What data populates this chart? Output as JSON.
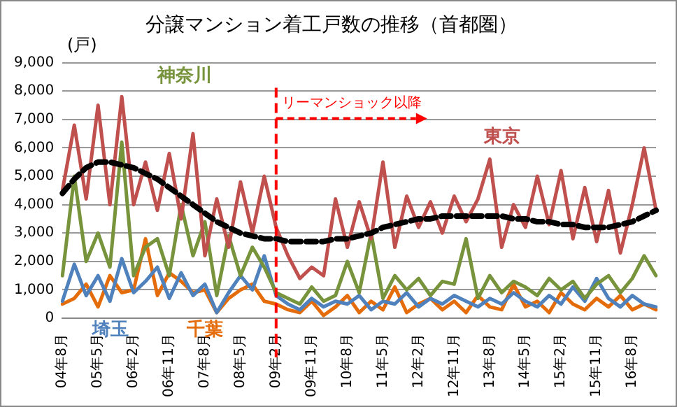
{
  "chart_data": {
    "type": "line",
    "title": "分譲マンション着工戸数の推移（首都圏）",
    "ylabel": "(戸)",
    "categories": [
      "04年8月",
      null,
      null,
      "05年5月",
      null,
      null,
      "06年2月",
      null,
      null,
      "06年11月",
      null,
      null,
      "07年8月",
      null,
      null,
      "08年5月",
      null,
      null,
      "09年2月",
      null,
      null,
      "09年11月",
      null,
      null,
      "10年8月",
      null,
      null,
      "11年5月",
      null,
      null,
      "12年2月",
      null,
      null,
      "12年11月",
      null,
      null,
      "13年8月",
      null,
      null,
      "14年5月",
      null,
      null,
      "15年2月",
      null,
      null,
      "15年11月",
      null,
      null,
      "16年8月",
      null,
      null
    ],
    "series": [
      {
        "name": "東京",
        "color": "#c0504d",
        "values": [
          4500,
          6800,
          4200,
          7500,
          4000,
          7800,
          4000,
          5500,
          3800,
          5800,
          3500,
          6500,
          2200,
          4200,
          2500,
          4800,
          3000,
          5000,
          3200,
          2200,
          1400,
          1800,
          1500,
          4200,
          2500,
          4100,
          2800,
          5500,
          2500,
          4300,
          3200,
          4100,
          3000,
          4300,
          3400,
          4200,
          5600,
          2500,
          4000,
          3200,
          5000,
          3300,
          5200,
          2800,
          4600,
          2700,
          4500,
          2300,
          4000,
          6000,
          3800
        ]
      },
      {
        "name": "神奈川",
        "color": "#77933c",
        "values": [
          1500,
          5000,
          2000,
          3000,
          1800,
          6200,
          1500,
          2500,
          2800,
          1500,
          4000,
          2200,
          3400,
          800,
          2900,
          1500,
          2500,
          1800,
          900,
          700,
          500,
          1100,
          600,
          800,
          2000,
          900,
          3000,
          700,
          1500,
          1000,
          1400,
          800,
          1300,
          1200,
          2800,
          700,
          1500,
          900,
          1300,
          1100,
          800,
          1400,
          1000,
          1300,
          700,
          1200,
          1500,
          900,
          1400,
          2200,
          1500
        ]
      },
      {
        "name": "埼玉",
        "color": "#4f81bd",
        "values": [
          600,
          1900,
          800,
          1500,
          600,
          2100,
          900,
          1300,
          1800,
          700,
          1600,
          800,
          1200,
          200,
          900,
          1500,
          1000,
          2200,
          800,
          500,
          300,
          700,
          400,
          600,
          500,
          800,
          300,
          600,
          500,
          900,
          400,
          700,
          500,
          800,
          600,
          400,
          700,
          500,
          900,
          600,
          400,
          800,
          500,
          1100,
          600,
          1400,
          700,
          400,
          800,
          500,
          400
        ]
      },
      {
        "name": "千葉",
        "color": "#e46c0a",
        "values": [
          500,
          700,
          1200,
          400,
          1500,
          900,
          1000,
          2800,
          800,
          1600,
          1300,
          900,
          1000,
          200,
          700,
          1000,
          1200,
          600,
          500,
          300,
          200,
          600,
          100,
          400,
          800,
          200,
          600,
          300,
          1100,
          200,
          500,
          700,
          300,
          600,
          200,
          800,
          400,
          300,
          1200,
          400,
          600,
          200,
          900,
          500,
          300,
          700,
          400,
          800,
          300,
          500,
          300
        ]
      },
      {
        "color": "#000000",
        "line_style": "dashed",
        "values": [
          4400,
          4900,
          5300,
          5500,
          5500,
          5400,
          5300,
          5100,
          4900,
          4600,
          4300,
          4000,
          3700,
          3400,
          3200,
          3000,
          2900,
          2800,
          2800,
          2700,
          2700,
          2700,
          2700,
          2800,
          2800,
          2900,
          3000,
          3200,
          3300,
          3400,
          3500,
          3500,
          3600,
          3600,
          3600,
          3600,
          3600,
          3600,
          3500,
          3500,
          3400,
          3400,
          3300,
          3300,
          3200,
          3200,
          3200,
          3300,
          3400,
          3600,
          3800
        ]
      }
    ],
    "ylim": [
      0,
      9000
    ],
    "yticks": [
      {
        "value": 0,
        "label": "0"
      },
      {
        "value": 1000,
        "label": "1,000"
      },
      {
        "value": 2000,
        "label": "2,000"
      },
      {
        "value": 3000,
        "label": "3,000"
      },
      {
        "value": 4000,
        "label": "4,000"
      },
      {
        "value": 5000,
        "label": "5,000"
      },
      {
        "value": 6000,
        "label": "6,000"
      },
      {
        "value": 7000,
        "label": "7,000"
      },
      {
        "value": 8000,
        "label": "8,000"
      },
      {
        "value": 9000,
        "label": "9,000"
      }
    ],
    "grid": "y",
    "legend": false,
    "marker": "none",
    "ref_lines": [
      {
        "axis": "x",
        "value": "09年2月",
        "label": "リーマンショック以降",
        "color": "#ff0000",
        "line_style": "dashed"
      }
    ]
  }
}
